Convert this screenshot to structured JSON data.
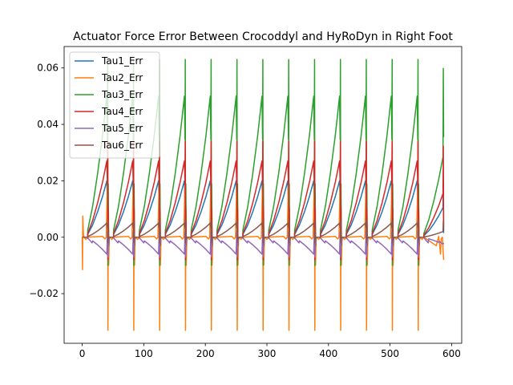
{
  "chart_data": {
    "type": "line",
    "title": "Actuator Force Error Between Crocoddyl and HyRoDyn in Right Foot",
    "xlabel": "",
    "ylabel": "",
    "xlim": [
      -29.35,
      616.35
    ],
    "ylim": [
      -0.0376,
      0.0676
    ],
    "xticks": [
      0,
      100,
      200,
      300,
      400,
      500,
      600
    ],
    "xtick_labels": [
      "0",
      "100",
      "200",
      "300",
      "400",
      "500",
      "600"
    ],
    "yticks": [
      -0.02,
      0,
      0.02,
      0.04,
      0.06
    ],
    "ytick_labels": [
      "−0.02",
      "0.00",
      "0.02",
      "0.04",
      "0.06"
    ],
    "grid": false,
    "legend": "top-left",
    "cycle_starts": [
      0,
      42,
      84,
      126,
      168,
      210,
      252,
      294,
      336,
      378,
      420,
      462,
      504,
      546
    ],
    "series": [
      {
        "name": "Tau1_Err",
        "color": "#1f77b4",
        "spike_min": -0.006,
        "spike_max": 0.021,
        "ramp_peak": 0.02,
        "last_ramp_end": 0.0105,
        "end_value": 0.0015
      },
      {
        "name": "Tau2_Err",
        "color": "#ff7f0e",
        "spike_min": -0.033,
        "spike_max": 0.037,
        "ramp_peak": 0.0,
        "last_ramp_end": 0.0,
        "end_value": -0.008,
        "start_spikes": [
          -0.0115,
          0.0075
        ]
      },
      {
        "name": "Tau3_Err",
        "color": "#2ca02c",
        "spike_min": -0.01,
        "spike_max": 0.063,
        "ramp_peak": 0.05,
        "last_ramp_end": 0.0285,
        "end_value": 0.0355
      },
      {
        "name": "Tau4_Err",
        "color": "#d62728",
        "spike_min": -0.008,
        "spike_max": 0.034,
        "ramp_peak": 0.027,
        "last_ramp_end": 0.0155,
        "end_value": 0.0035
      },
      {
        "name": "Tau5_Err",
        "color": "#9467bd",
        "spike_min": -0.007,
        "spike_max": 0.003,
        "ramp_peak": -0.006,
        "last_ramp_end": -0.0025,
        "end_value": -0.002
      },
      {
        "name": "Tau6_Err",
        "color": "#8c564b",
        "spike_min": -0.002,
        "spike_max": 0.006,
        "ramp_peak": 0.005,
        "last_ramp_end": 0.002,
        "end_value": 0.0025
      }
    ]
  }
}
